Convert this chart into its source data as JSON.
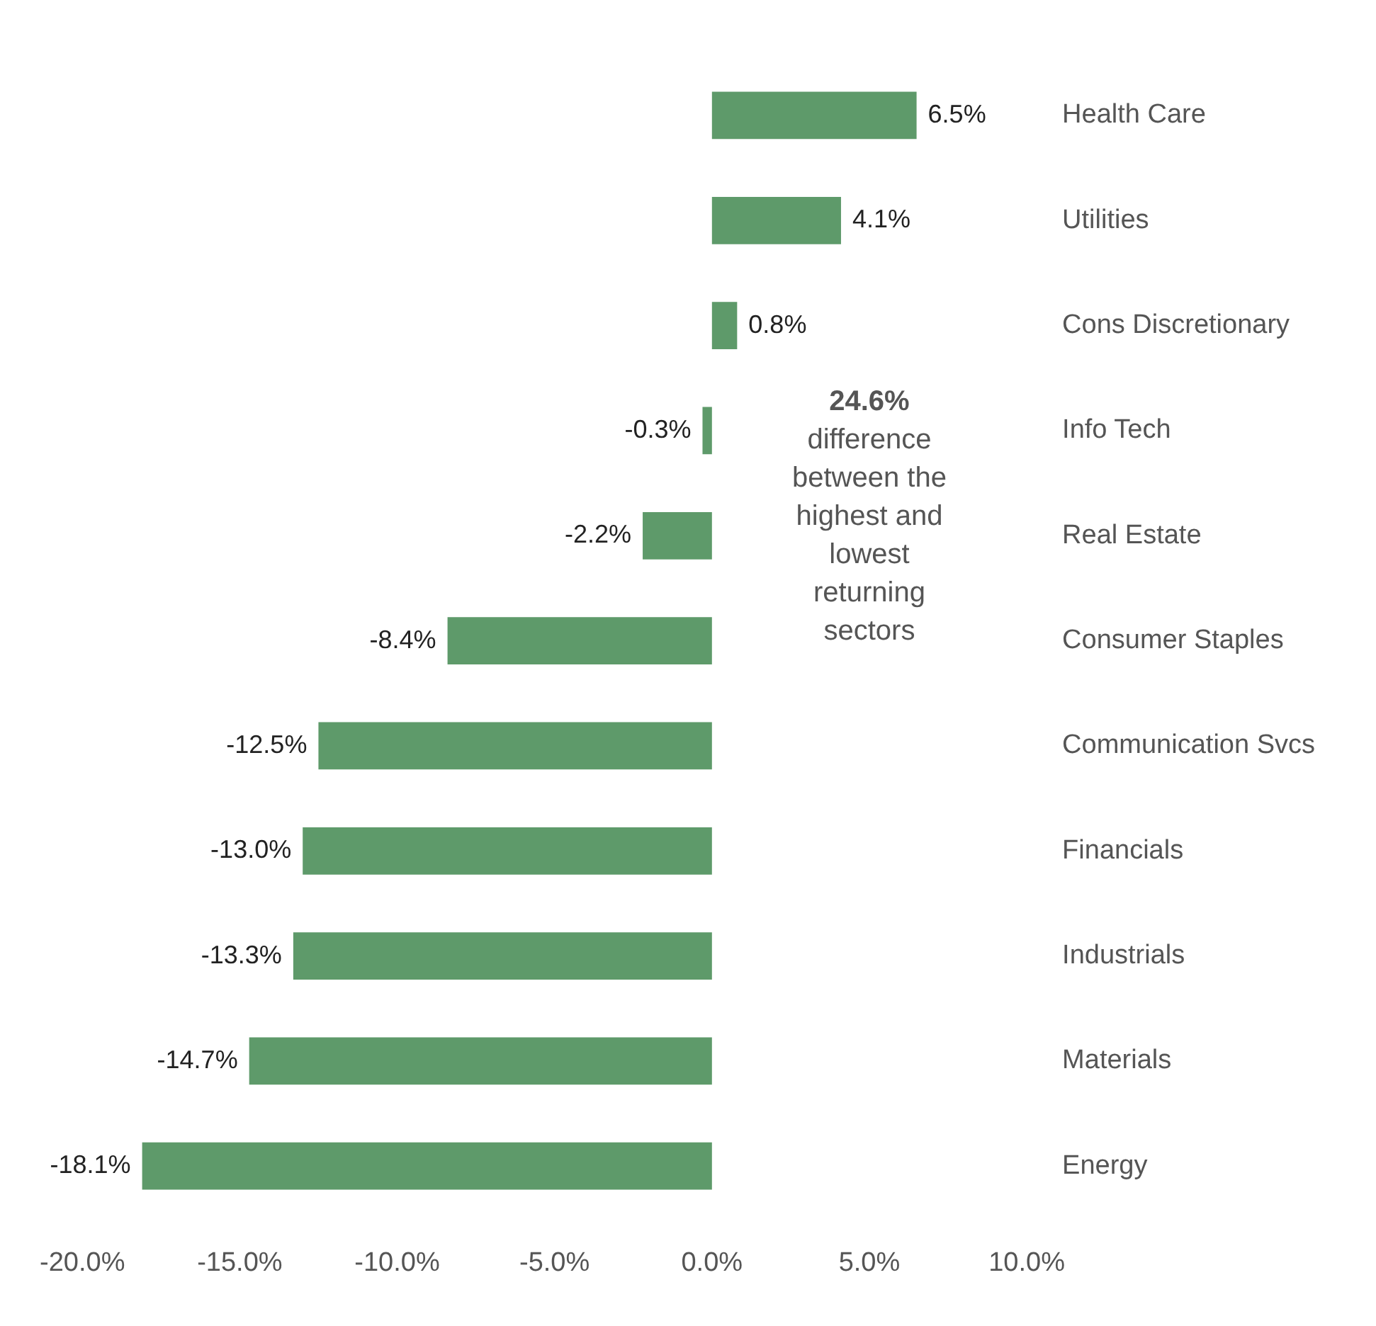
{
  "chart_data": {
    "type": "bar",
    "orientation": "horizontal",
    "categories": [
      "Health Care",
      "Utilities",
      "Cons Discretionary",
      "Info Tech",
      "Real Estate",
      "Consumer Staples",
      "Communication Svcs",
      "Financials",
      "Industrials",
      "Materials",
      "Energy"
    ],
    "values": [
      6.5,
      4.1,
      0.8,
      -0.3,
      -2.2,
      -8.4,
      -12.5,
      -13.0,
      -13.3,
      -14.7,
      -18.1
    ],
    "value_labels": [
      "6.5%",
      "4.1%",
      "0.8%",
      "-0.3%",
      "-2.2%",
      "-8.4%",
      "-12.5%",
      "-13.0%",
      "-13.3%",
      "-14.7%",
      "-18.1%"
    ],
    "color": "#5e9a6a",
    "xlim": [
      -20,
      10
    ],
    "xticks": [
      {
        "value": -20,
        "label": "-20.0%"
      },
      {
        "value": -15,
        "label": "-15.0%"
      },
      {
        "value": -10,
        "label": "-10.0%"
      },
      {
        "value": -5,
        "label": "-5.0%"
      },
      {
        "value": 0,
        "label": "0.0%"
      },
      {
        "value": 5,
        "label": "5.0%"
      },
      {
        "value": 10,
        "label": "10.0%"
      }
    ],
    "grid": false,
    "legend": false,
    "annotations": [
      "24.6%",
      "difference between the highest and lowest returning sectors"
    ]
  }
}
